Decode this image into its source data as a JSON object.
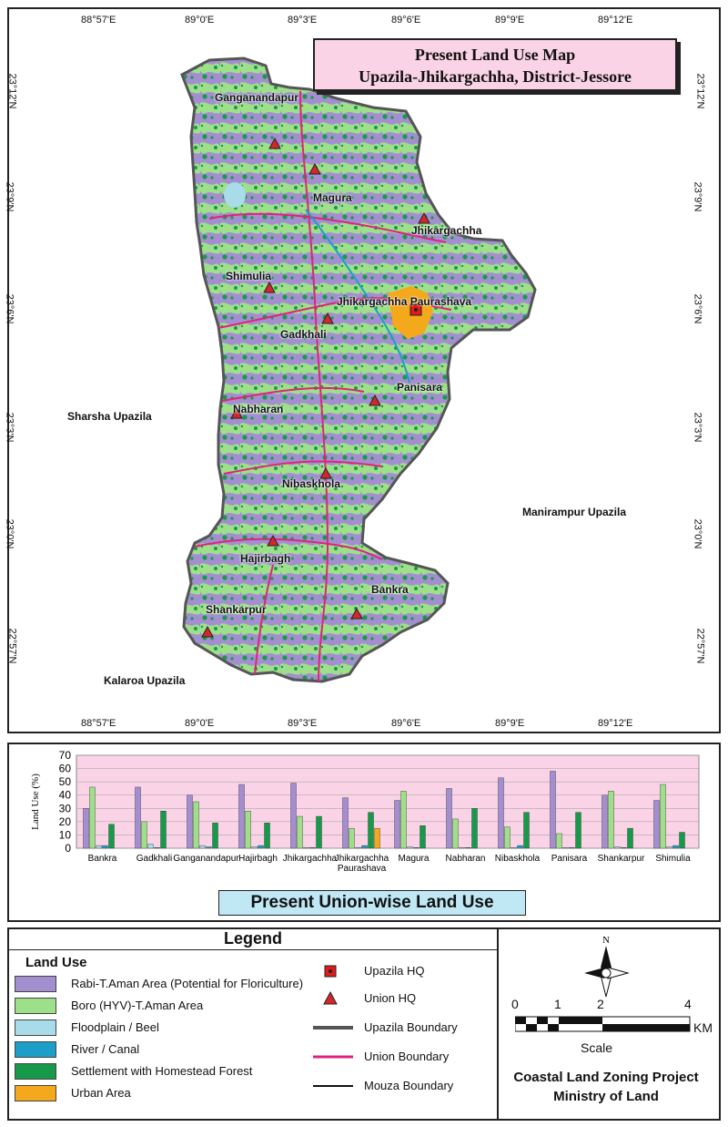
{
  "map": {
    "title_line1": "Present Land Use  Map",
    "title_line2": "Upazila-Jhikargachha, District-Jessore",
    "top_coords": [
      "88°57'E",
      "89°0'E",
      "89°3'E",
      "89°6'E",
      "89°9'E",
      "89°12'E"
    ],
    "bottom_coords": [
      "88°57'E",
      "89°0'E",
      "89°3'E",
      "89°6'E",
      "89°9'E",
      "89°12'E"
    ],
    "left_coords": [
      "23°12'N",
      "23°9'N",
      "23°6'N",
      "23°3'N",
      "23°0'N",
      "22°57'N"
    ],
    "right_coords": [
      "23°12'N",
      "23°9'N",
      "23°6'N",
      "23°3'N",
      "23°0'N",
      "22°57'N"
    ],
    "neighbors": {
      "west": "Sharsha Upazila",
      "east": "Manirampur Upazila",
      "southwest": "Kalaroa Upazila"
    },
    "unions": [
      "Ganganandapur",
      "Magura",
      "Jhikargachha",
      "Shimulia",
      "Jhikargachha Paurashava",
      "Gadkhali",
      "Panisara",
      "Nabharan",
      "Nibaskhola",
      "Hajirbagh",
      "Bankra",
      "Shankarpur"
    ],
    "colors": {
      "rabi": "#a38fd0",
      "boro": "#9ee08a",
      "floodplain": "#a8dce8",
      "river": "#1c9ec9",
      "settlement": "#169a4a",
      "urban": "#f4a81c",
      "union_boundary": "#e0237a"
    }
  },
  "chart_data": {
    "type": "bar",
    "ylabel": "Land Use (%)",
    "ylim": [
      0,
      70
    ],
    "yticks": [
      0,
      10,
      20,
      30,
      40,
      50,
      60,
      70
    ],
    "categories": [
      "Bankra",
      "Gadkhali",
      "Ganganandapur",
      "Hajirbagh",
      "Jhikargachha",
      "Jhikargachha Paurashava",
      "Magura",
      "Nabharan",
      "Nibaskhola",
      "Panisara",
      "Shankarpur",
      "Shimulia"
    ],
    "series": [
      {
        "color": "#a38fd0",
        "values": [
          30,
          46,
          40,
          48,
          49,
          38,
          36,
          45,
          53,
          58,
          40,
          36
        ]
      },
      {
        "color": "#9ee08a",
        "values": [
          46,
          20,
          35,
          28,
          24,
          15,
          43,
          22,
          16,
          11,
          43,
          48
        ]
      },
      {
        "color": "#a8dce8",
        "values": [
          2,
          3,
          2,
          1,
          0.5,
          0.5,
          1,
          0.5,
          0.5,
          0.5,
          1,
          1
        ]
      },
      {
        "color": "#1c9ec9",
        "values": [
          2,
          0.5,
          1,
          2,
          0.5,
          2,
          0.5,
          0.5,
          2,
          0.5,
          0.5,
          2
        ]
      },
      {
        "color": "#169a4a",
        "values": [
          18,
          28,
          19,
          19,
          24,
          27,
          17,
          30,
          27,
          27,
          15,
          12
        ]
      },
      {
        "color": "#f4a81c",
        "values": [
          0,
          0,
          0,
          0,
          0,
          15,
          0,
          0,
          0,
          0,
          0,
          0
        ]
      }
    ],
    "subtitle": "Present Union-wise Land Use"
  },
  "legend": {
    "title": "Legend",
    "heading": "Land Use",
    "items": [
      {
        "label": "Rabi-T.Aman Area (Potential for Floriculture)",
        "color": "#a38fd0"
      },
      {
        "label": "Boro (HYV)-T.Aman Area",
        "color": "#9ee08a"
      },
      {
        "label": "Floodplain / Beel",
        "color": "#a8dce8"
      },
      {
        "label": "River / Canal",
        "color": "#1c9ec9"
      },
      {
        "label": "Settlement with Homestead Forest",
        "color": "#169a4a"
      },
      {
        "label": "Urban Area",
        "color": "#f4a81c"
      }
    ],
    "symbols": [
      {
        "label": "Upazila HQ",
        "icon": "red-square-dot-icon"
      },
      {
        "label": "Union HQ",
        "icon": "red-triangle-icon"
      },
      {
        "label": "Upazila Boundary",
        "icon": "thick-gray-line-icon"
      },
      {
        "label": "Union Boundary",
        "icon": "pink-line-icon"
      },
      {
        "label": "Mouza Boundary",
        "icon": "black-line-icon"
      }
    ],
    "north": "N",
    "scale_ticks": [
      "0",
      "1",
      "2",
      "4"
    ],
    "scale_unit": "KM",
    "scale_label": "Scale",
    "credit_line1": "Coastal Land Zoning Project",
    "credit_line2": "Ministry of Land"
  }
}
